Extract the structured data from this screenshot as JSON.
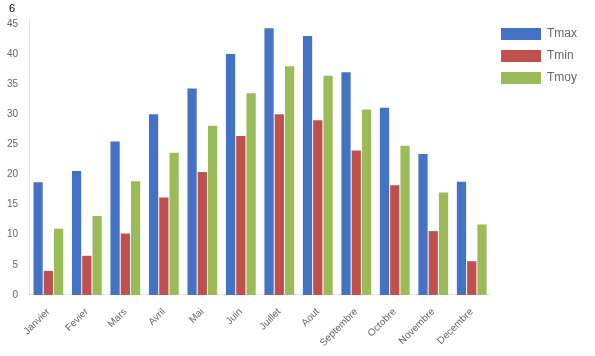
{
  "chart_data": {
    "type": "bar",
    "annotation": "6",
    "categories": [
      "Janvier",
      "Fevier",
      "Mars",
      "Avril",
      "Mai",
      "Juin",
      "Juillet",
      "Aout",
      "Septembre",
      "Octobre",
      "Novembre",
      "Decembre"
    ],
    "series": [
      {
        "name": "Tmax",
        "color": "#4472C4",
        "values": [
          18.7,
          20.6,
          25.5,
          30.0,
          34.3,
          40.0,
          44.3,
          43.0,
          37.0,
          31.1,
          23.4,
          18.8
        ]
      },
      {
        "name": "Tmin",
        "color": "#C0504D",
        "values": [
          4.0,
          6.5,
          10.2,
          16.2,
          20.4,
          26.4,
          30.0,
          29.0,
          24.0,
          18.2,
          10.6,
          5.6
        ]
      },
      {
        "name": "Tmoy",
        "color": "#9BBB59",
        "values": [
          11.0,
          13.1,
          18.9,
          23.6,
          28.1,
          33.5,
          38.0,
          36.4,
          30.8,
          24.8,
          17.0,
          11.7
        ]
      }
    ],
    "ylim": [
      0,
      46
    ],
    "yticks": [
      0,
      5,
      10,
      15,
      20,
      25,
      30,
      35,
      40,
      45
    ],
    "grid": false,
    "legend": "upper right"
  }
}
